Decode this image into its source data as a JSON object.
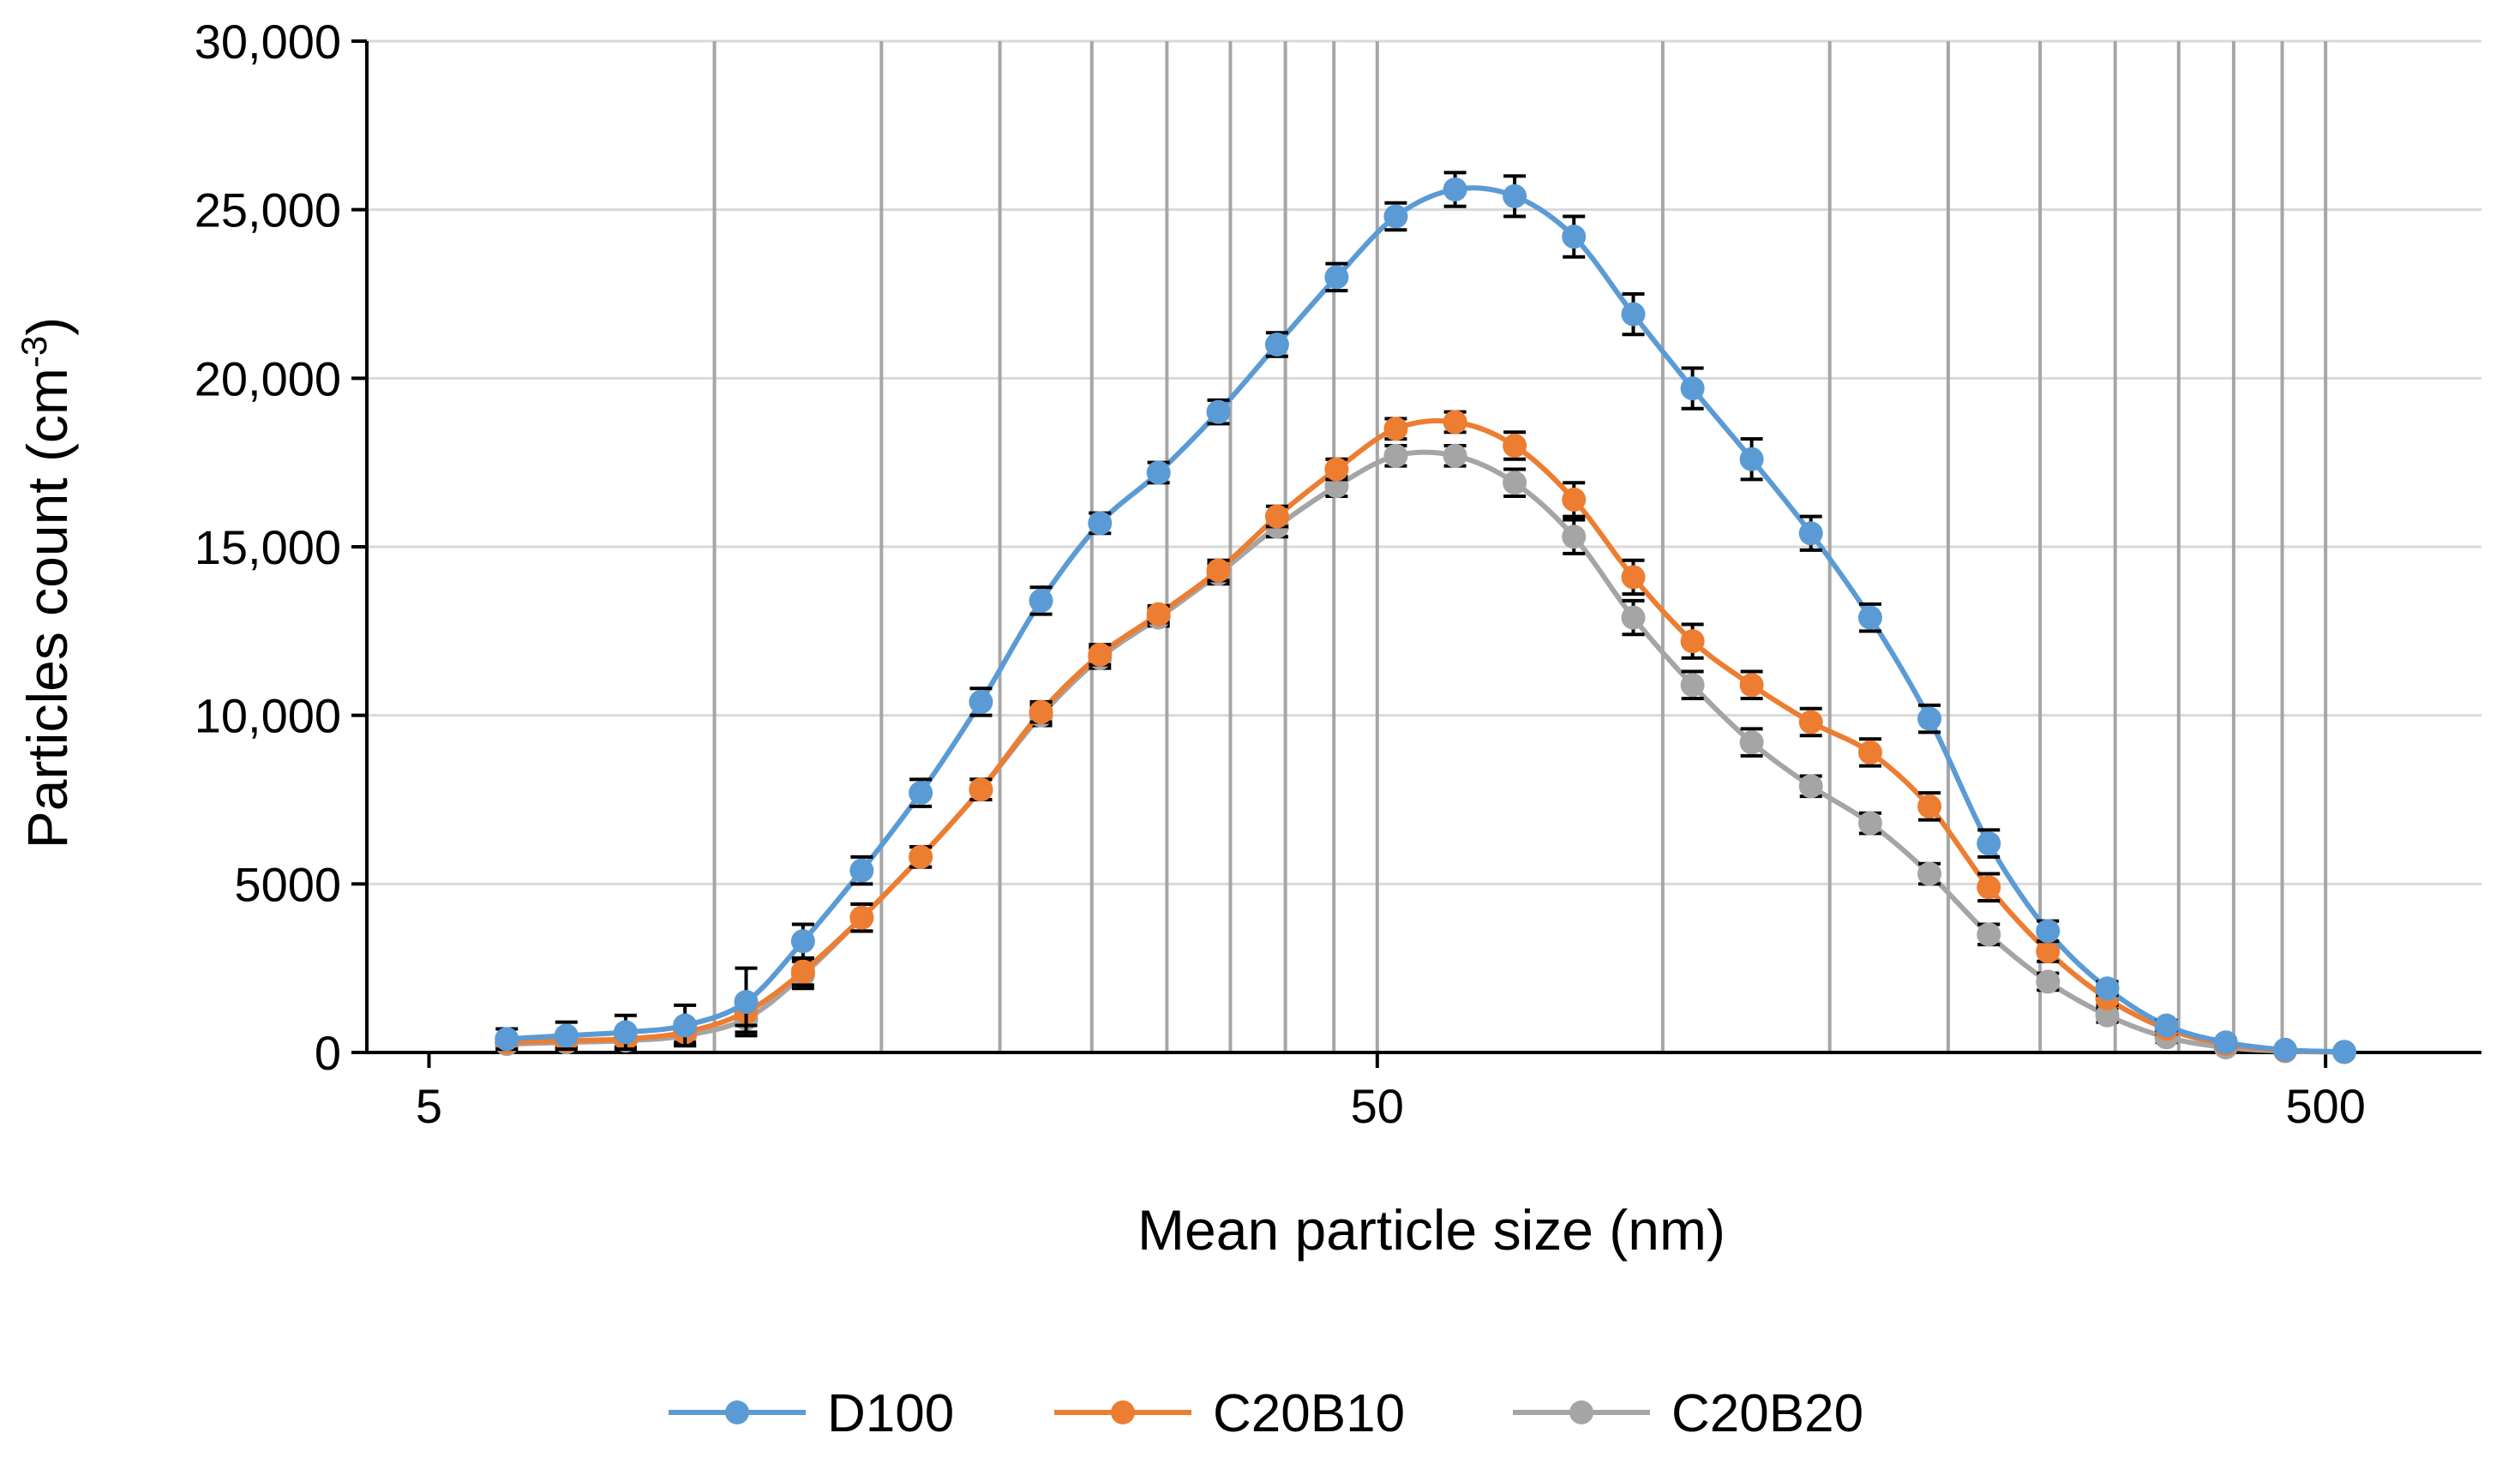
{
  "chart_data": {
    "type": "line",
    "title": "",
    "xlabel": "Mean particle size (nm)",
    "ylabel_main": "Particles count (cm",
    "ylabel_sup": "-3",
    "ylabel_close": ")",
    "xscale": "log",
    "xlim": [
      4.3,
      730
    ],
    "ylim": [
      0,
      30000
    ],
    "x_ticks": [
      {
        "value": 5,
        "label": "5"
      },
      {
        "value": 50,
        "label": "50"
      },
      {
        "value": 500,
        "label": "500"
      }
    ],
    "y_ticks": [
      {
        "value": 0,
        "label": "0"
      },
      {
        "value": 5000,
        "label": "5000"
      },
      {
        "value": 10000,
        "label": "10,000"
      },
      {
        "value": 15000,
        "label": "15,000"
      },
      {
        "value": 20000,
        "label": "20,000"
      },
      {
        "value": 25000,
        "label": "25,000"
      },
      {
        "value": 30000,
        "label": "30,000"
      }
    ],
    "vertical_gridlines": [
      10,
      15,
      20,
      25,
      30,
      35,
      40,
      45,
      50,
      100,
      150,
      200,
      250,
      300,
      350,
      400,
      450,
      500
    ],
    "horizontal_gridlines": [
      5000,
      10000,
      15000,
      20000,
      25000,
      30000
    ],
    "legend_position": "bottom",
    "x": [
      6.04,
      6.98,
      8.06,
      9.31,
      10.8,
      12.4,
      14.3,
      16.5,
      19.1,
      22.1,
      25.5,
      29.4,
      34.0,
      39.2,
      45.3,
      52.3,
      60.4,
      69.8,
      80.6,
      93.1,
      107.5,
      124.1,
      143.3,
      165.5,
      191.1,
      220.7,
      254.8,
      294.3,
      339.8,
      392.4,
      453.2,
      523.3
    ],
    "series": [
      {
        "name": "D100",
        "color": "#5B9BD5",
        "values": [
          400,
          500,
          600,
          800,
          1500,
          3300,
          5400,
          7700,
          10400,
          13400,
          15700,
          17200,
          19000,
          21000,
          23000,
          24800,
          25600,
          25400,
          24200,
          21900,
          19700,
          17600,
          15400,
          12900,
          9900,
          6200,
          3600,
          1900,
          800,
          300,
          80,
          20
        ],
        "errors": [
          300,
          400,
          500,
          600,
          1000,
          500,
          400,
          400,
          400,
          400,
          300,
          300,
          350,
          350,
          400,
          400,
          500,
          600,
          600,
          600,
          600,
          600,
          500,
          400,
          400,
          400,
          300,
          200,
          150,
          100,
          60,
          30
        ]
      },
      {
        "name": "C20B10",
        "color": "#ED7D31",
        "values": [
          300,
          350,
          400,
          600,
          1200,
          2400,
          4000,
          5800,
          7800,
          10100,
          11800,
          13000,
          14300,
          15900,
          17300,
          18500,
          18700,
          18000,
          16400,
          14100,
          12200,
          10900,
          9800,
          8900,
          7300,
          4900,
          3000,
          1600,
          700,
          250,
          60,
          15
        ],
        "errors": [
          150,
          200,
          250,
          300,
          400,
          400,
          400,
          300,
          300,
          300,
          300,
          250,
          300,
          300,
          300,
          300,
          300,
          400,
          500,
          500,
          500,
          400,
          400,
          400,
          400,
          400,
          300,
          200,
          150,
          100,
          50,
          20
        ]
      },
      {
        "name": "C20B20",
        "color": "#A5A5A5",
        "values": [
          250,
          300,
          350,
          500,
          1000,
          2300,
          4000,
          5800,
          7800,
          10000,
          11700,
          12900,
          14200,
          15600,
          16800,
          17700,
          17700,
          16900,
          15300,
          12900,
          10900,
          9200,
          7900,
          6800,
          5300,
          3500,
          2100,
          1100,
          450,
          150,
          40,
          10
        ],
        "errors": [
          150,
          200,
          250,
          300,
          400,
          400,
          400,
          300,
          300,
          300,
          300,
          250,
          300,
          300,
          300,
          300,
          300,
          400,
          500,
          500,
          400,
          400,
          300,
          300,
          300,
          300,
          250,
          200,
          150,
          80,
          40,
          20
        ]
      }
    ]
  }
}
